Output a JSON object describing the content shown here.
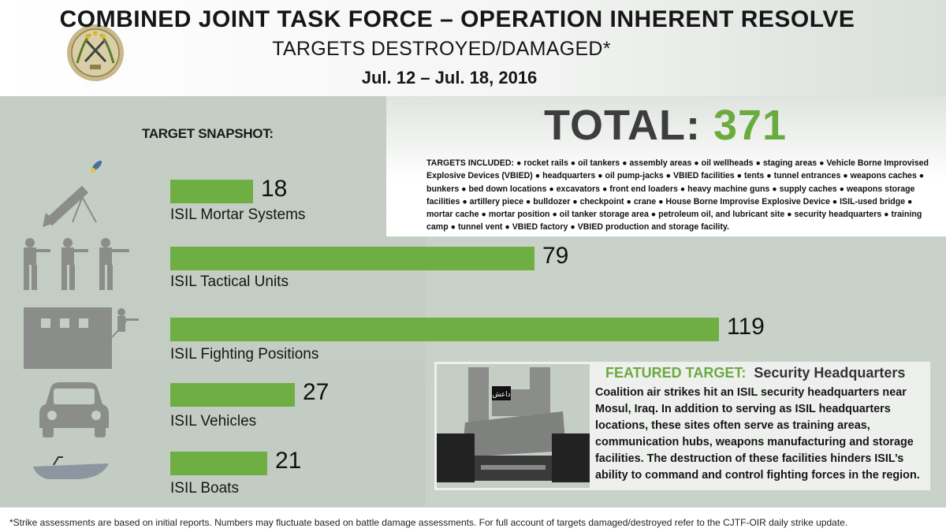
{
  "header": {
    "title": "COMBINED JOINT TASK FORCE – OPERATION INHERENT RESOLVE",
    "subtitle": "TARGETS DESTROYED/DAMAGED*",
    "dates": "Jul. 12 – Jul. 18,  2016"
  },
  "snapshot_label": "TARGET SNAPSHOT:",
  "total": {
    "label": "TOTAL:",
    "value": "371"
  },
  "targets_included": "TARGETS INCLUDED: ● rocket rails ● oil tankers ● assembly areas ● oil wellheads ● staging areas ● Vehicle Borne Improvised Explosive Devices (VBIED) ● headquarters ● oil pump-jacks ● VBIED facilities ● tents ● tunnel entrances ● weapons caches ● bunkers ● bed down locations ● excavators ● front end loaders ● heavy machine guns ● supply caches ● weapons storage facilities ● artillery piece ● bulldozer ● checkpoint ● crane ● House Borne Improvise Explosive Device ● ISIL-used bridge ● mortar cache ● mortar position ● oil tanker storage area ● petroleum oil, and lubricant site ● security headquarters ● training camp ● tunnel vent ● VBIED factory ● VBIED production and storage facility.",
  "chart_data": {
    "type": "bar",
    "orientation": "horizontal",
    "categories": [
      "ISIL Mortar Systems",
      "ISIL Tactical Units",
      "ISIL Fighting Positions",
      "ISIL Vehicles",
      "ISIL Boats"
    ],
    "values": [
      18,
      79,
      119,
      27,
      21
    ],
    "icons": [
      "mortar-icon",
      "soldiers-icon",
      "building-icon",
      "vehicle-icon",
      "boat-icon"
    ],
    "bar_color": "#6eae43",
    "title": "",
    "xlabel": "",
    "ylabel": ""
  },
  "featured": {
    "label": "FEATURED TARGET:",
    "name": "Security Headquarters",
    "body": "Coalition air strikes hit an ISIL security headquarters near Mosul, Iraq. In addition to serving as ISIL headquarters locations, these sites often serve as training areas, communication hubs, weapons manufacturing and storage facilities. The destruction of these facilities hinders ISIL’s ability to command and control fighting forces in the region.",
    "flag_text": "داعش"
  },
  "footer": "*Strike assessments are based on initial reports. Numbers may fluctuate based on battle damage assessments. For full account of targets damaged/destroyed refer to the CJTF-OIR daily strike update.",
  "colors": {
    "accent_green": "#6aab3e",
    "icon_gray": "#8a8d8a"
  }
}
